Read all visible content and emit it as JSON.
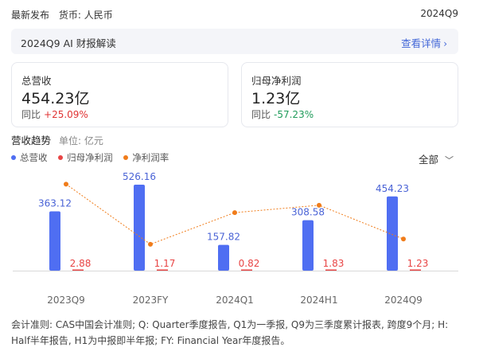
{
  "header": {
    "latest_release_label": "最新发布",
    "currency_label": "货币: 人民币",
    "period": "2024Q9"
  },
  "ai_bar": {
    "title": "2024Q9 AI 财报解读",
    "link_label": "查看详情"
  },
  "cards": [
    {
      "label": "总营收",
      "value": "454.23亿",
      "yoy_label": "同比",
      "yoy_value": "+25.09%",
      "yoy_direction": "up"
    },
    {
      "label": "归母净利润",
      "value": "1.23亿",
      "yoy_label": "同比",
      "yoy_value": "-57.23%",
      "yoy_direction": "down"
    }
  ],
  "trend": {
    "title": "营收趋势",
    "unit": "单位: 亿元",
    "filter_label": "全部"
  },
  "colors": {
    "revenue": "#4f6ef2",
    "net_profit": "#e84545",
    "margin": "#f07c1a",
    "up": "#e03333",
    "down": "#1f9b5a",
    "link": "#4468d8"
  },
  "chart_data": {
    "type": "bar",
    "categories": [
      "2023Q9",
      "2023FY",
      "2024Q1",
      "2024H1",
      "2024Q9"
    ],
    "series": [
      {
        "name": "总营收",
        "values": [
          363.12,
          526.16,
          157.82,
          308.58,
          454.23
        ],
        "labels": [
          "363.12",
          "526.16",
          "157.82",
          "308.58",
          "454.23"
        ]
      },
      {
        "name": "归母净利润",
        "values": [
          2.88,
          1.17,
          0.82,
          1.83,
          1.23
        ],
        "labels": [
          "2.88",
          "1.17",
          "0.82",
          "1.83",
          "1.23"
        ]
      },
      {
        "name": "净利润率",
        "type": "line",
        "values": [
          0.79,
          0.22,
          0.52,
          0.59,
          0.27
        ]
      }
    ]
  },
  "footnote": "会计准则: CAS中国会计准则; Q: Quarter季度报告, Q1为一季报, Q9为三季度累计报表, 跨度9个月; H: Half半年报告, H1为中报即半年报; FY: Financial Year年度报告。"
}
